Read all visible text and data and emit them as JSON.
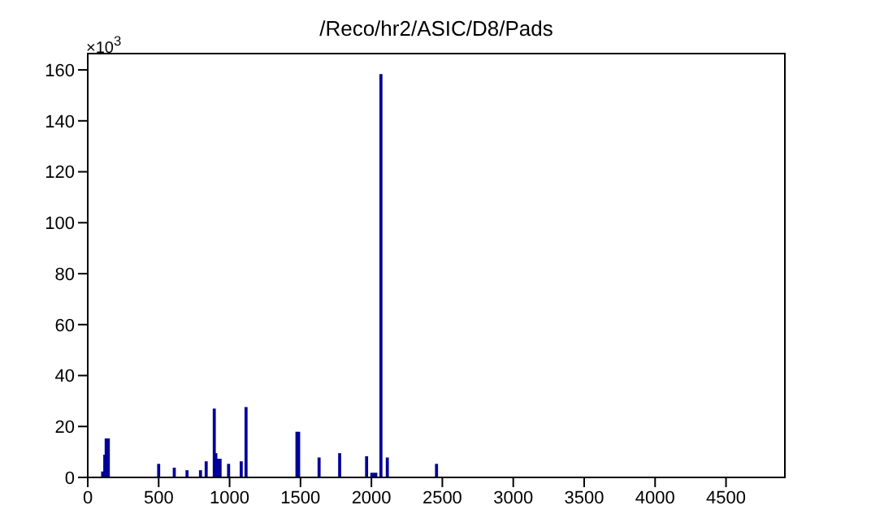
{
  "chart_data": {
    "type": "histogram",
    "title": "/Reco/hr2/ASIC/D8/Pads",
    "annotations": [
      "×10$^{3}$"
    ],
    "bins": [
      100,
      110,
      115,
      125,
      150,
      495,
      505,
      605,
      615,
      695,
      705,
      790,
      800,
      830,
      840,
      887,
      897,
      898,
      908,
      913,
      938,
      988,
      998,
      1077,
      1087,
      1111,
      1121,
      1470,
      1492,
      1626,
      1636,
      1771,
      1781,
      1961,
      1971,
      1998,
      2036,
      2062,
      2072,
      2107,
      2117,
      2454,
      2464
    ],
    "values": [
      2,
      0,
      8.6,
      15,
      0,
      5,
      0,
      3.5,
      0,
      2.5,
      0,
      2.5,
      0,
      6,
      0,
      26.7,
      0,
      9.2,
      0,
      7,
      0,
      5,
      0,
      6,
      0,
      27.3,
      0,
      17.6,
      0,
      7.5,
      0,
      9.2,
      0,
      8,
      0,
      1.5,
      0,
      158,
      0,
      7.5,
      0,
      5
    ],
    "color": "#000099",
    "xlim": [
      0,
      4915
    ],
    "xticks": [
      0,
      500,
      1000,
      1500,
      2000,
      2500,
      3000,
      3500,
      4000,
      4500
    ],
    "ylim": [
      0,
      166.4
    ],
    "yticks": [
      0,
      20,
      40,
      60,
      80,
      100,
      120,
      140,
      160
    ]
  }
}
